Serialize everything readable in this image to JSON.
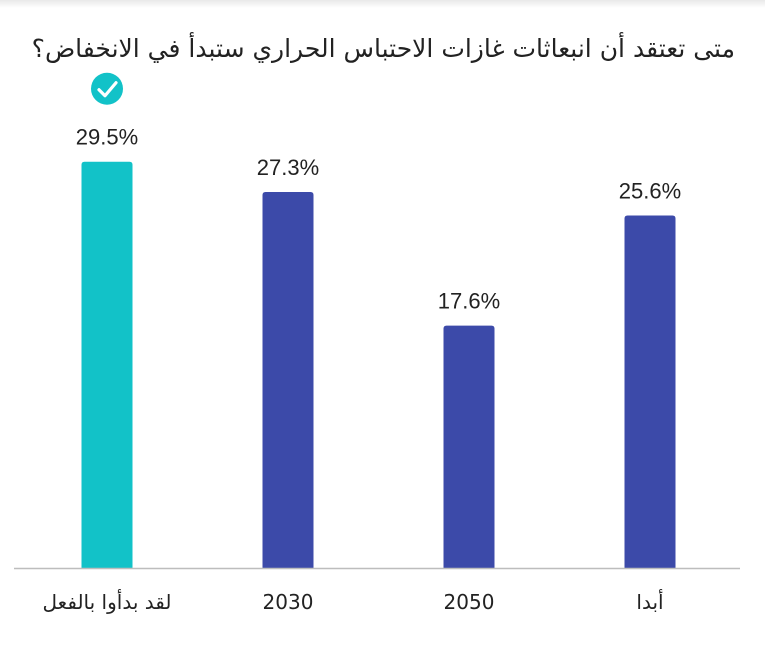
{
  "question": "متى تعتقد أن انبعاثات غازات الاحتباس الحراري ستبدأ في الانخفاض؟",
  "chart_data": {
    "type": "bar",
    "categories": [
      "لقد بدأوا بالفعل",
      "2030",
      "2050",
      "أبدا"
    ],
    "values": [
      29.5,
      27.3,
      17.6,
      25.6
    ],
    "value_labels": [
      "29.5%",
      "27.3%",
      "17.6%",
      "25.6%"
    ],
    "unit": "%",
    "ylim": [
      0,
      35
    ],
    "grid": false,
    "legend": "none",
    "highlighted_index": 0,
    "highlight_icon": "check-circle-icon",
    "colors": {
      "highlight": "#12c2c8",
      "bar": "#3c4aa9",
      "axis": "#bdbdbd"
    }
  }
}
